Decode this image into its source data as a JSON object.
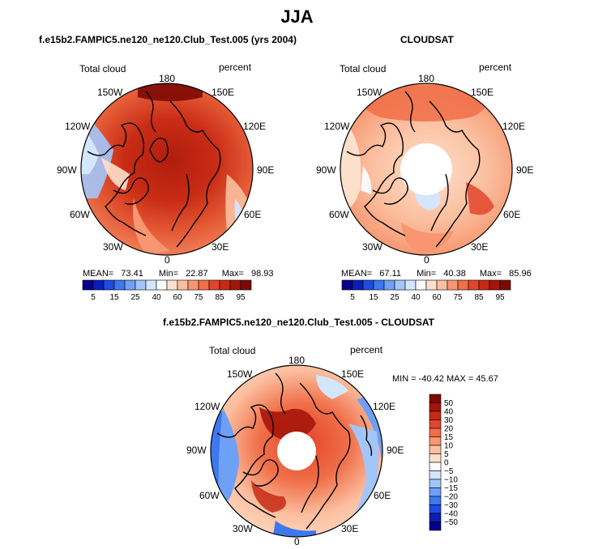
{
  "figure_title": "JJA",
  "chart_data": [
    {
      "type": "heatmap",
      "projection": "polar-stereographic-north",
      "title": "f.e15b2.FAMPIC5.ne120_ne120.Club_Test.005 (yrs 2004)",
      "left_label": "Total cloud",
      "right_label": "percent",
      "longitude_labels": [
        "180",
        "150E",
        "120E",
        "90E",
        "60E",
        "30E",
        "0",
        "30W",
        "60W",
        "90W",
        "120W",
        "150W"
      ],
      "stats": {
        "mean_label": "MEAN=",
        "mean": "73.41",
        "min_label": "Min=",
        "min": "22.87",
        "max_label": "Max=",
        "max": "98.93"
      },
      "colorbar": {
        "orientation": "horizontal",
        "tick_labels": [
          "5",
          "15",
          "25",
          "40",
          "60",
          "75",
          "85",
          "95"
        ],
        "colors": [
          "#08008c",
          "#0a1fb8",
          "#1e4be0",
          "#3d78ee",
          "#6ea0f5",
          "#a3c6fa",
          "#d4e6fd",
          "#f9f9f9",
          "#fde0cc",
          "#fbbf9f",
          "#f79670",
          "#f06e48",
          "#e2452b",
          "#c72a14",
          "#a6150a",
          "#7d0a05"
        ]
      }
    },
    {
      "type": "heatmap",
      "projection": "polar-stereographic-north",
      "title": "CLOUDSAT",
      "left_label": "Total cloud",
      "right_label": "percent",
      "longitude_labels": [
        "180",
        "150E",
        "120E",
        "90E",
        "60E",
        "30E",
        "0",
        "30W",
        "60W",
        "90W",
        "120W",
        "150W"
      ],
      "stats": {
        "mean_label": "MEAN=",
        "mean": "67.11",
        "min_label": "Min=",
        "min": "40.38",
        "max_label": "Max=",
        "max": "85.96"
      },
      "colorbar": {
        "orientation": "horizontal",
        "tick_labels": [
          "5",
          "15",
          "25",
          "40",
          "60",
          "75",
          "85",
          "95"
        ],
        "colors": [
          "#08008c",
          "#0a1fb8",
          "#1e4be0",
          "#3d78ee",
          "#6ea0f5",
          "#a3c6fa",
          "#d4e6fd",
          "#f9f9f9",
          "#fde0cc",
          "#fbbf9f",
          "#f79670",
          "#f06e48",
          "#e2452b",
          "#c72a14",
          "#a6150a",
          "#7d0a05"
        ]
      }
    },
    {
      "type": "heatmap",
      "projection": "polar-stereographic-north",
      "title": "f.e15b2.FAMPIC5.ne120_ne120.Club_Test.005 - CLOUDSAT",
      "left_label": "Total cloud",
      "right_label": "percent",
      "longitude_labels": [
        "180",
        "150E",
        "120E",
        "90E",
        "60E",
        "30E",
        "0",
        "30W",
        "60W",
        "90W",
        "120W",
        "150W"
      ],
      "stats_text": "MIN = -40.42  MAX =  45.67",
      "colorbar": {
        "orientation": "vertical",
        "tick_labels": [
          "50",
          "40",
          "30",
          "20",
          "15",
          "10",
          "5",
          "0",
          "−5",
          "−10",
          "−15",
          "−20",
          "−30",
          "−40",
          "−50"
        ],
        "colors": [
          "#7d0a05",
          "#a6150a",
          "#c72a14",
          "#e2452b",
          "#f06e48",
          "#f79670",
          "#fbbf9f",
          "#fde0cc",
          "#f9f9f9",
          "#d4e6fd",
          "#a3c6fa",
          "#6ea0f5",
          "#3d78ee",
          "#1e4be0",
          "#0a1fb8",
          "#08008c"
        ]
      }
    }
  ]
}
